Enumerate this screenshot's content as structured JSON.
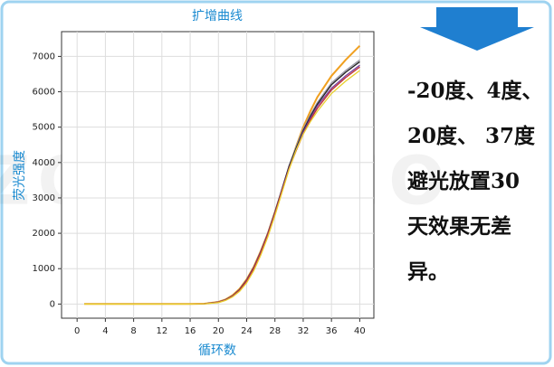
{
  "chart_data": {
    "type": "line",
    "title": "扩增曲线",
    "x_label": "循环数",
    "y_label": "荧光强度",
    "x": [
      1,
      4,
      8,
      12,
      16,
      18,
      20,
      21,
      22,
      23,
      24,
      25,
      26,
      27,
      28,
      29,
      30,
      31,
      32,
      33,
      34,
      36,
      38,
      40
    ],
    "series": [
      {
        "color": "#f0a020",
        "values": [
          0,
          0,
          0,
          0,
          0,
          10,
          60,
          130,
          250,
          430,
          700,
          1050,
          1500,
          2000,
          2600,
          3200,
          3850,
          4450,
          5000,
          5450,
          5850,
          6450,
          6900,
          7300
        ]
      },
      {
        "color": "#9a9aa8",
        "values": [
          0,
          0,
          0,
          0,
          0,
          10,
          55,
          120,
          230,
          410,
          680,
          1030,
          1480,
          2000,
          2600,
          3250,
          3900,
          4450,
          4950,
          5350,
          5700,
          6250,
          6600,
          6900
        ]
      },
      {
        "color": "#222222",
        "values": [
          0,
          0,
          0,
          0,
          0,
          10,
          55,
          120,
          230,
          410,
          680,
          1030,
          1480,
          2000,
          2600,
          3250,
          3900,
          4400,
          4900,
          5300,
          5650,
          6200,
          6550,
          6850
        ]
      },
      {
        "color": "#7a3fa0",
        "values": [
          0,
          0,
          0,
          0,
          0,
          10,
          55,
          115,
          225,
          400,
          670,
          1020,
          1470,
          1990,
          2580,
          3220,
          3850,
          4350,
          4850,
          5250,
          5600,
          6100,
          6450,
          6750
        ]
      },
      {
        "color": "#c03030",
        "values": [
          0,
          0,
          0,
          0,
          0,
          10,
          50,
          110,
          215,
          390,
          650,
          1000,
          1440,
          1960,
          2550,
          3200,
          3820,
          4330,
          4800,
          5200,
          5530,
          6050,
          6400,
          6700
        ]
      },
      {
        "color": "#e8d030",
        "values": [
          0,
          0,
          0,
          0,
          0,
          5,
          40,
          100,
          200,
          360,
          600,
          940,
          1380,
          1900,
          2500,
          3150,
          3800,
          4350,
          4800,
          5150,
          5450,
          5950,
          6300,
          6600
        ]
      }
    ],
    "xlim": [
      -2.2,
      42
    ],
    "xticks": [
      0,
      4,
      8,
      12,
      16,
      20,
      24,
      28,
      32,
      36,
      40
    ],
    "ylim": [
      -400,
      7700
    ],
    "yticks": [
      0,
      1000,
      2000,
      3000,
      4000,
      5000,
      6000,
      7000
    ],
    "grid": true
  },
  "watermark": "ZOMANBIO",
  "note": [
    "-20度、4度、",
    "20度、 37度",
    "避光放置30",
    "天效果无差",
    "异。"
  ]
}
